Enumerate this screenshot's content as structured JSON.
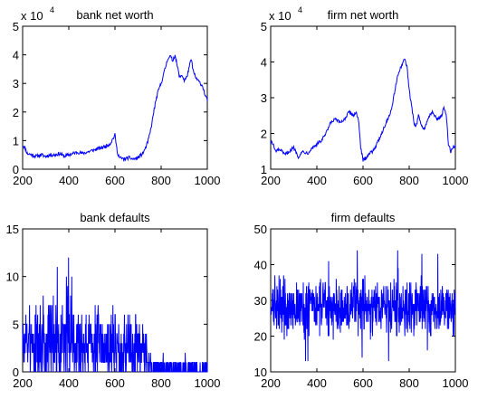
{
  "chart_data": [
    {
      "type": "line",
      "title": "bank net worth",
      "xlim": [
        200,
        1000
      ],
      "ylim": [
        0,
        5
      ],
      "xticks": [
        "200",
        "400",
        "600",
        "800",
        "1000"
      ],
      "yticks": [
        "0",
        "1",
        "2",
        "3",
        "4",
        "5"
      ],
      "y_multiplier": {
        "base": "x 10",
        "exponent": "4"
      },
      "series_color": "#0000ff",
      "series": [
        {
          "x": [
            200,
            210,
            220,
            240,
            260,
            280,
            300,
            320,
            340,
            360,
            380,
            400,
            420,
            440,
            460,
            480,
            500,
            520,
            540,
            560,
            580,
            590,
            600,
            610,
            620,
            640,
            660,
            680,
            700,
            720,
            730,
            740,
            750,
            760,
            770,
            780,
            790,
            800,
            810,
            820,
            830,
            840,
            850,
            860,
            870,
            880,
            890,
            900,
            910,
            920,
            930,
            940,
            950,
            960,
            970,
            980,
            990,
            1000
          ],
          "values": [
            0.85,
            0.75,
            0.55,
            0.5,
            0.45,
            0.5,
            0.45,
            0.5,
            0.5,
            0.55,
            0.45,
            0.5,
            0.55,
            0.6,
            0.55,
            0.6,
            0.65,
            0.7,
            0.75,
            0.8,
            0.9,
            1.05,
            1.2,
            0.6,
            0.4,
            0.35,
            0.4,
            0.35,
            0.4,
            0.55,
            0.7,
            0.9,
            1.2,
            1.6,
            2.1,
            2.5,
            2.8,
            3.0,
            3.3,
            3.6,
            3.9,
            3.95,
            3.8,
            4.0,
            3.6,
            3.2,
            3.3,
            3.1,
            3.2,
            3.5,
            3.85,
            3.4,
            3.2,
            3.1,
            3.0,
            2.9,
            2.6,
            2.4
          ]
        }
      ]
    },
    {
      "type": "line",
      "title": "firm net worth",
      "xlim": [
        200,
        1000
      ],
      "ylim": [
        1,
        5
      ],
      "xticks": [
        "200",
        "400",
        "600",
        "800",
        "1000"
      ],
      "yticks": [
        "1",
        "2",
        "3",
        "4",
        "5"
      ],
      "y_multiplier": {
        "base": "x 10",
        "exponent": "4"
      },
      "series_color": "#0000ff",
      "series": [
        {
          "x": [
            200,
            210,
            220,
            240,
            260,
            280,
            300,
            320,
            340,
            360,
            380,
            400,
            420,
            440,
            460,
            480,
            500,
            520,
            540,
            560,
            570,
            580,
            590,
            600,
            610,
            620,
            640,
            660,
            680,
            700,
            720,
            730,
            740,
            750,
            760,
            770,
            780,
            790,
            800,
            810,
            820,
            830,
            840,
            850,
            860,
            870,
            880,
            900,
            920,
            940,
            950,
            960,
            970,
            980,
            990,
            1000
          ],
          "values": [
            1.8,
            1.7,
            1.5,
            1.55,
            1.4,
            1.5,
            1.6,
            1.35,
            1.5,
            1.45,
            1.6,
            1.7,
            1.8,
            2.0,
            2.3,
            2.4,
            2.3,
            2.4,
            2.6,
            2.5,
            2.6,
            2.4,
            1.6,
            1.25,
            1.3,
            1.4,
            1.5,
            1.7,
            2.0,
            2.3,
            2.6,
            2.9,
            3.3,
            3.6,
            3.8,
            3.9,
            4.1,
            3.9,
            3.2,
            2.8,
            2.3,
            2.2,
            2.5,
            2.3,
            2.1,
            2.2,
            2.4,
            2.6,
            2.4,
            2.5,
            2.7,
            2.55,
            1.7,
            1.5,
            1.6,
            1.65
          ]
        }
      ]
    },
    {
      "type": "line",
      "title": "bank defaults",
      "xlim": [
        200,
        1000
      ],
      "ylim": [
        0,
        15
      ],
      "xticks": [
        "200",
        "400",
        "600",
        "800",
        "1000"
      ],
      "yticks": [
        "0",
        "5",
        "10",
        "15"
      ],
      "series_color": "#0000ff",
      "series": [
        {
          "noise_seed": 7,
          "level_x": [
            200,
            300,
            400,
            500,
            600,
            650,
            700,
            750,
            800,
            850,
            900,
            950,
            1000
          ],
          "level_mean": [
            3.0,
            3.2,
            3.5,
            3.0,
            2.8,
            2.8,
            2.5,
            1.0,
            0.4,
            0.3,
            0.3,
            0.3,
            0.3
          ],
          "level_spread": [
            2.5,
            3.0,
            3.0,
            2.5,
            2.5,
            2.5,
            2.5,
            1.2,
            0.6,
            0.5,
            0.5,
            0.5,
            0.5
          ],
          "max_value": 12,
          "integer": true
        }
      ]
    },
    {
      "type": "line",
      "title": "firm defaults",
      "xlim": [
        200,
        1000
      ],
      "ylim": [
        10,
        50
      ],
      "xticks": [
        "200",
        "400",
        "600",
        "800",
        "1000"
      ],
      "yticks": [
        "10",
        "20",
        "30",
        "40",
        "50"
      ],
      "series_color": "#0000ff",
      "series": [
        {
          "noise_seed": 13,
          "level_x": [
            200,
            1000
          ],
          "level_mean": [
            28,
            28
          ],
          "level_spread": [
            5,
            5
          ],
          "max_value": 46,
          "min_value": 13,
          "integer": true
        }
      ]
    }
  ]
}
